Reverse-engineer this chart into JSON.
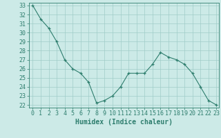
{
  "x": [
    0,
    1,
    2,
    3,
    4,
    5,
    6,
    7,
    8,
    9,
    10,
    11,
    12,
    13,
    14,
    15,
    16,
    17,
    18,
    19,
    20,
    21,
    22,
    23
  ],
  "y": [
    33,
    31.5,
    30.5,
    29,
    27,
    26,
    25.5,
    24.5,
    22.2,
    22.5,
    23,
    24,
    25.5,
    25.5,
    25.5,
    26.5,
    27.8,
    27.3,
    27,
    26.5,
    25.5,
    24,
    22.5,
    22
  ],
  "xlabel": "Humidex (Indice chaleur)",
  "ylim_min": 22,
  "ylim_max": 33,
  "xlim_min": 0,
  "xlim_max": 23,
  "yticks": [
    22,
    23,
    24,
    25,
    26,
    27,
    28,
    29,
    30,
    31,
    32,
    33
  ],
  "xticks": [
    0,
    1,
    2,
    3,
    4,
    5,
    6,
    7,
    8,
    9,
    10,
    11,
    12,
    13,
    14,
    15,
    16,
    17,
    18,
    19,
    20,
    21,
    22,
    23
  ],
  "line_color": "#2d7d6d",
  "bg_color": "#cceae7",
  "grid_color": "#a0ccc8",
  "tick_color": "#2d7d6d",
  "label_color": "#2d7d6d",
  "font_size": 6.0,
  "xlabel_fontsize": 7.0
}
